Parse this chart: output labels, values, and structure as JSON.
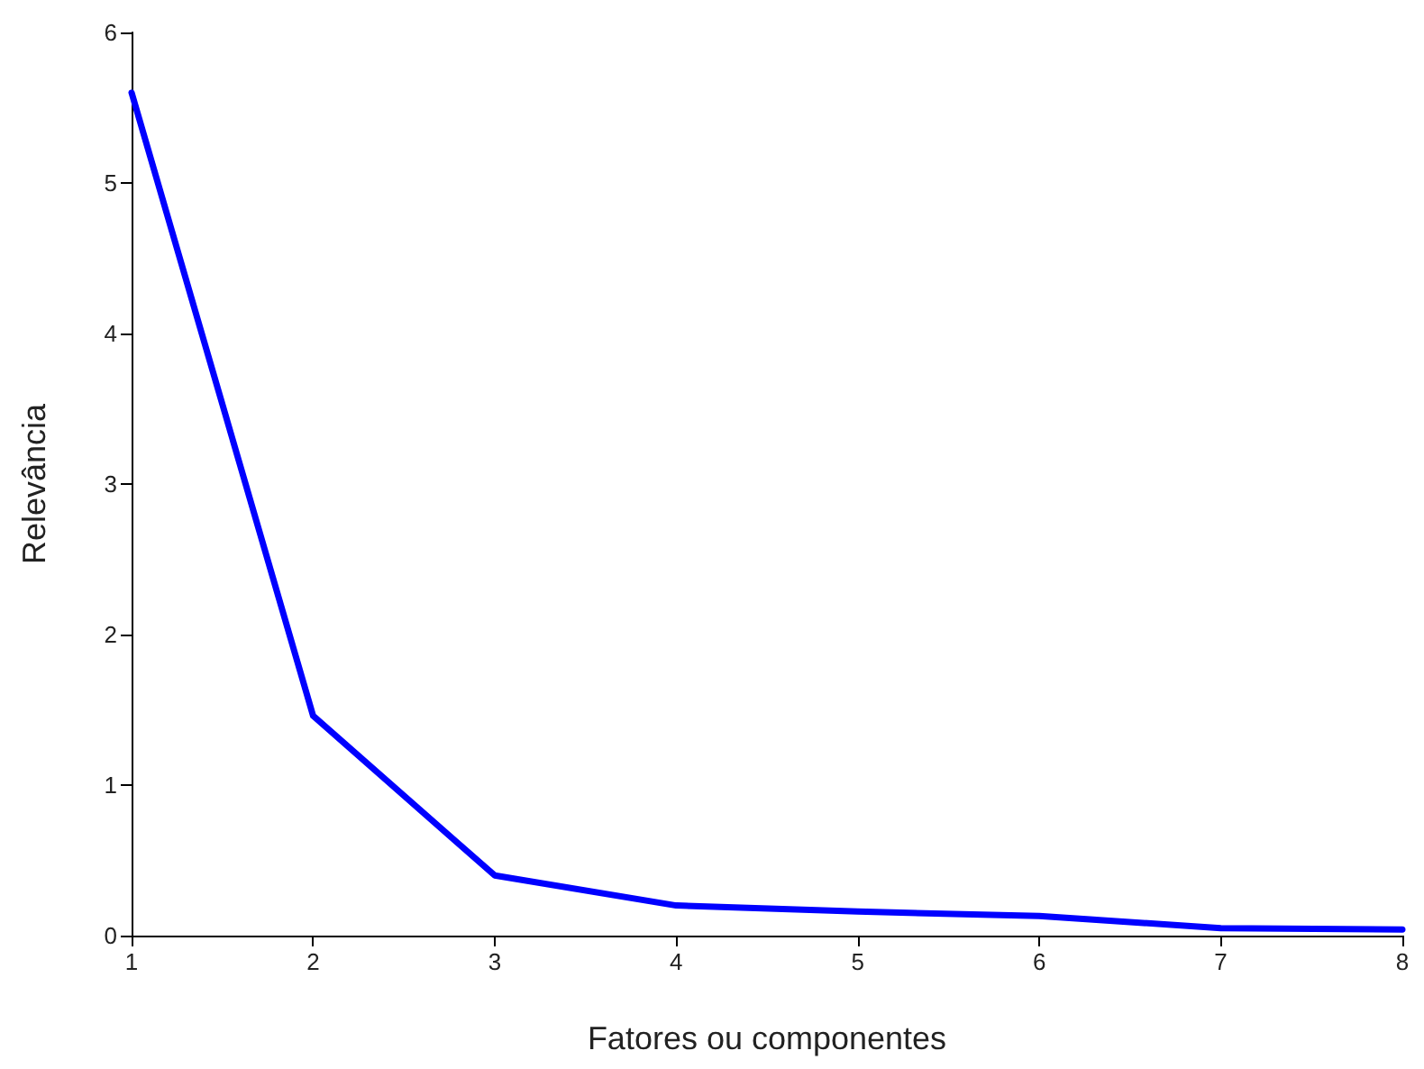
{
  "chart_data": {
    "type": "line",
    "xlabel": "Fatores ou componentes",
    "ylabel": "Relevância",
    "x": [
      1,
      2,
      3,
      4,
      5,
      6,
      7,
      8
    ],
    "series": [
      {
        "color": "#0000ff",
        "values": [
          5.6,
          1.46,
          0.4,
          0.2,
          0.16,
          0.13,
          0.05,
          0.04
        ]
      }
    ],
    "xlim": [
      1,
      8
    ],
    "xticks": [
      1,
      2,
      3,
      4,
      5,
      6,
      7,
      8
    ],
    "ylim": [
      0,
      6
    ],
    "yticks": [
      0,
      1,
      2,
      3,
      4,
      5,
      6
    ],
    "grid": false,
    "marker": "none",
    "line_style": "solid"
  }
}
